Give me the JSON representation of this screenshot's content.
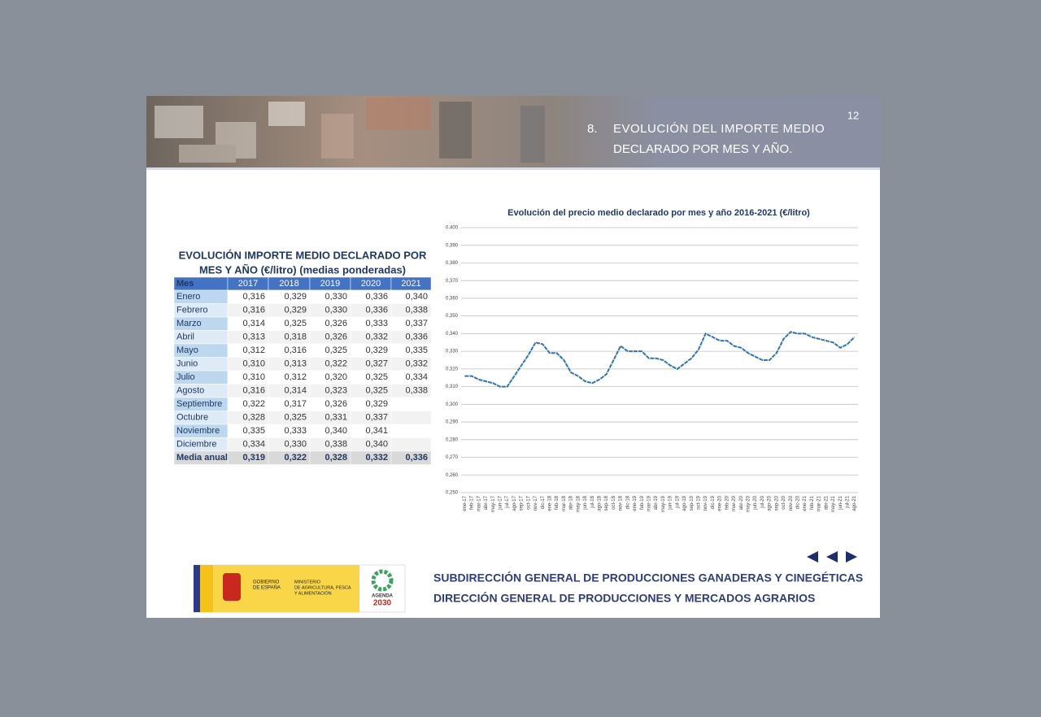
{
  "header": {
    "page_number": "12",
    "number": "8.",
    "title": [
      "EVOLUCIÓN DEL IMPORTE MEDIO",
      "DECLARADO POR MES Y AÑO."
    ]
  },
  "table": {
    "title": [
      "EVOLUCIÓN IMPORTE MEDIO DECLARADO POR",
      "MES Y AÑO (€/litro) (medias ponderadas)"
    ],
    "header": [
      "Mes",
      "2017",
      "2018",
      "2019",
      "2020",
      "2021"
    ],
    "rows": [
      [
        "Enero",
        "0,316",
        "0,329",
        "0,330",
        "0,336",
        "0,340"
      ],
      [
        "Febrero",
        "0,316",
        "0,329",
        "0,330",
        "0,336",
        "0,338"
      ],
      [
        "Marzo",
        "0,314",
        "0,325",
        "0,326",
        "0,333",
        "0,337"
      ],
      [
        "Abril",
        "0,313",
        "0,318",
        "0,326",
        "0,332",
        "0,336"
      ],
      [
        "Mayo",
        "0,312",
        "0,316",
        "0,325",
        "0,329",
        "0,335"
      ],
      [
        "Junio",
        "0,310",
        "0,313",
        "0,322",
        "0,327",
        "0,332"
      ],
      [
        "Julio",
        "0,310",
        "0,312",
        "0,320",
        "0,325",
        "0,334"
      ],
      [
        "Agosto",
        "0,316",
        "0,314",
        "0,323",
        "0,325",
        "0,338"
      ],
      [
        "Septiembre",
        "0,322",
        "0,317",
        "0,326",
        "0,329"
      ],
      [
        "Octubre",
        "0,328",
        "0,325",
        "0,331",
        "0,337"
      ],
      [
        "Noviembre",
        "0,335",
        "0,333",
        "0,340",
        "0,341"
      ],
      [
        "Diciembre",
        "0,334",
        "0,330",
        "0,338",
        "0,340"
      ],
      [
        "Media anual",
        "0,319",
        "0,322",
        "0,328",
        "0,332",
        "0,336"
      ]
    ]
  },
  "chart_data": {
    "type": "line",
    "title": "Evolución del precio medio declarado por mes y año 2016-2021 (€/litro)",
    "categories": [
      "ene-17",
      "feb-17",
      "mar-17",
      "abr-17",
      "may-17",
      "jun-17",
      "jul-17",
      "ago-17",
      "sep-17",
      "oct-17",
      "nov-17",
      "dic-17",
      "ene-18",
      "feb-18",
      "mar-18",
      "abr-18",
      "may-18",
      "jun-18",
      "jul-18",
      "ago-18",
      "sep-18",
      "oct-18",
      "nov-18",
      "dic-18",
      "ene-19",
      "feb-19",
      "mar-19",
      "abr-19",
      "may-19",
      "jun-19",
      "jul-19",
      "ago-19",
      "sep-19",
      "oct-19",
      "nov-19",
      "dic-19",
      "ene-20",
      "feb-20",
      "mar-20",
      "abr-20",
      "may-20",
      "jun-20",
      "jul-20",
      "ago-20",
      "sep-20",
      "oct-20",
      "nov-20",
      "dic-20",
      "ene-21",
      "feb-21",
      "mar-21",
      "abr-21",
      "may-21",
      "jun-21",
      "jul-21",
      "ago-21"
    ],
    "values": [
      0.316,
      0.316,
      0.314,
      0.313,
      0.312,
      0.31,
      0.31,
      0.316,
      0.322,
      0.328,
      0.335,
      0.334,
      0.329,
      0.329,
      0.325,
      0.318,
      0.316,
      0.313,
      0.312,
      0.314,
      0.317,
      0.325,
      0.333,
      0.33,
      0.33,
      0.33,
      0.326,
      0.326,
      0.325,
      0.322,
      0.32,
      0.323,
      0.326,
      0.331,
      0.34,
      0.338,
      0.336,
      0.336,
      0.333,
      0.332,
      0.329,
      0.327,
      0.325,
      0.325,
      0.329,
      0.337,
      0.341,
      0.34,
      0.34,
      0.338,
      0.337,
      0.336,
      0.335,
      0.332,
      0.334,
      0.338
    ],
    "color": "#2e75b6",
    "ylim": [
      0.25,
      0.4
    ],
    "yticks": [
      {
        "value": 0.25,
        "label": "0,250"
      },
      {
        "value": 0.26,
        "label": "0,260"
      },
      {
        "value": 0.27,
        "label": "0,270"
      },
      {
        "value": 0.28,
        "label": "0,280"
      },
      {
        "value": 0.29,
        "label": "0,290"
      },
      {
        "value": 0.3,
        "label": "0,300"
      },
      {
        "value": 0.31,
        "label": "0,310"
      },
      {
        "value": 0.32,
        "label": "0,320"
      },
      {
        "value": 0.33,
        "label": "0,330"
      },
      {
        "value": 0.34,
        "label": "0,340"
      },
      {
        "value": 0.35,
        "label": "0,350"
      },
      {
        "value": 0.36,
        "label": "0,360"
      },
      {
        "value": 0.37,
        "label": "0,370"
      },
      {
        "value": 0.38,
        "label": "0,380"
      },
      {
        "value": 0.39,
        "label": "0,390"
      },
      {
        "value": 0.4,
        "label": "0,400"
      }
    ],
    "grid": true
  },
  "footer": {
    "logo": {
      "gov": [
        "GOBIERNO",
        "DE ESPAÑA"
      ],
      "ministry": [
        "MINISTERIO",
        "DE AGRICULTURA, PESCA",
        "Y ALIMENTACIÓN"
      ],
      "agenda": [
        "AGENDA",
        "2030"
      ]
    },
    "lines": [
      "SUBDIRECCIÓN GENERAL DE PRODUCCIONES GANADERAS Y CINEGÉTICAS",
      "DIRECCIÓN GENERAL DE PRODUCCIONES Y MERCADOS AGRARIOS"
    ]
  }
}
